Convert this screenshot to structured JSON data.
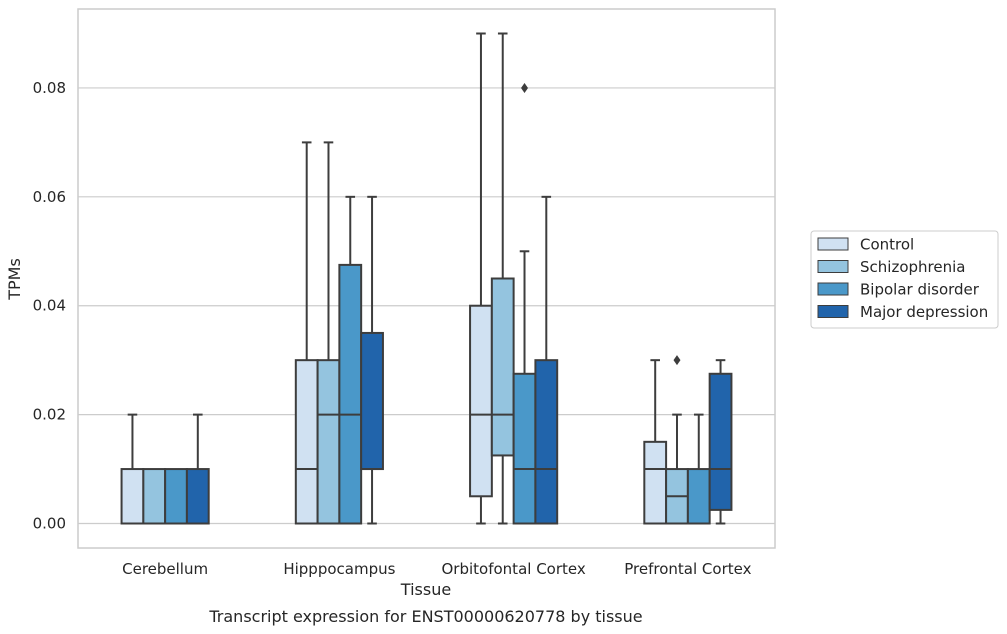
{
  "caption": "Transcript expression for ENST00000620778 by tissue",
  "chart_data": {
    "type": "box",
    "xlabel": "Tissue",
    "ylabel": "TPMs",
    "ylim": [
      -0.0045,
      0.0945
    ],
    "yticks": [
      0.0,
      0.02,
      0.04,
      0.06,
      0.08
    ],
    "ytick_labels": [
      "0.00",
      "0.02",
      "0.04",
      "0.06",
      "0.08"
    ],
    "grid": "horizontal",
    "legend_position": "right",
    "categories": [
      "Cerebellum",
      "Hipppocampus",
      "Orbitofontal Cortex",
      "Prefrontal Cortex"
    ],
    "series": [
      {
        "name": "Control",
        "color": "#d0e1f2",
        "boxes": [
          {
            "whislo": 0.0,
            "q1": 0.0,
            "med": 0.0,
            "q3": 0.01,
            "whishi": 0.02,
            "fliers": []
          },
          {
            "whislo": 0.0,
            "q1": 0.0,
            "med": 0.01,
            "q3": 0.03,
            "whishi": 0.07,
            "fliers": []
          },
          {
            "whislo": 0.0,
            "q1": 0.005,
            "med": 0.02,
            "q3": 0.04,
            "whishi": 0.09,
            "fliers": []
          },
          {
            "whislo": 0.0,
            "q1": 0.0,
            "med": 0.01,
            "q3": 0.015,
            "whishi": 0.03,
            "fliers": []
          }
        ]
      },
      {
        "name": "Schizophrenia",
        "color": "#94c4df",
        "boxes": [
          {
            "whislo": 0.0,
            "q1": 0.0,
            "med": 0.0,
            "q3": 0.01,
            "whishi": 0.01,
            "fliers": []
          },
          {
            "whislo": 0.0,
            "q1": 0.0,
            "med": 0.02,
            "q3": 0.03,
            "whishi": 0.07,
            "fliers": []
          },
          {
            "whislo": 0.0,
            "q1": 0.0125,
            "med": 0.02,
            "q3": 0.045,
            "whishi": 0.09,
            "fliers": []
          },
          {
            "whislo": 0.0,
            "q1": 0.0,
            "med": 0.005,
            "q3": 0.01,
            "whishi": 0.02,
            "fliers": [
              0.03
            ]
          }
        ]
      },
      {
        "name": "Bipolar disorder",
        "color": "#4a98c9",
        "boxes": [
          {
            "whislo": 0.0,
            "q1": 0.0,
            "med": 0.0,
            "q3": 0.01,
            "whishi": 0.01,
            "fliers": []
          },
          {
            "whislo": 0.0,
            "q1": 0.0,
            "med": 0.02,
            "q3": 0.0475,
            "whishi": 0.06,
            "fliers": []
          },
          {
            "whislo": 0.0,
            "q1": 0.0,
            "med": 0.01,
            "q3": 0.0275,
            "whishi": 0.05,
            "fliers": [
              0.08
            ]
          },
          {
            "whislo": 0.0,
            "q1": 0.0,
            "med": 0.0,
            "q3": 0.01,
            "whishi": 0.02,
            "fliers": []
          }
        ]
      },
      {
        "name": "Major depression",
        "color": "#2164ab",
        "boxes": [
          {
            "whislo": 0.0,
            "q1": 0.0,
            "med": 0.0,
            "q3": 0.01,
            "whishi": 0.02,
            "fliers": []
          },
          {
            "whislo": 0.0,
            "q1": 0.01,
            "med": 0.01,
            "q3": 0.035,
            "whishi": 0.06,
            "fliers": []
          },
          {
            "whislo": 0.0,
            "q1": 0.0,
            "med": 0.01,
            "q3": 0.03,
            "whishi": 0.06,
            "fliers": []
          },
          {
            "whislo": 0.0,
            "q1": 0.0025,
            "med": 0.01,
            "q3": 0.0275,
            "whishi": 0.03,
            "fliers": []
          }
        ]
      }
    ]
  }
}
